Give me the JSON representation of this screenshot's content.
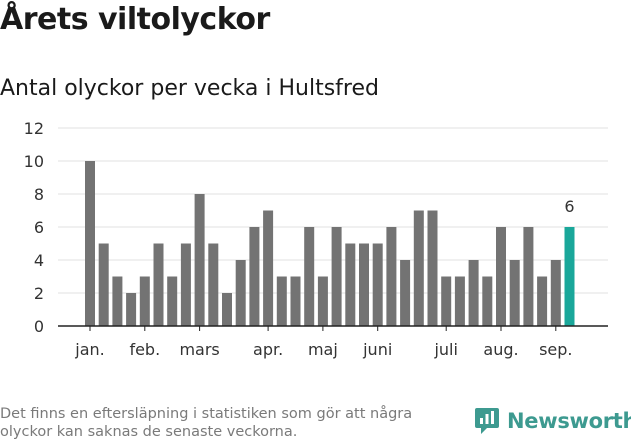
{
  "header": {
    "title": "Årets viltolyckor",
    "subtitle": "Antal olyckor per vecka i Hultsfred"
  },
  "footer": {
    "note": "Det finns en eftersläpning i statistiken som gör att några olyckor kan saknas de senaste veckorna.",
    "brand": "Newsworthy"
  },
  "colors": {
    "bar": "#737373",
    "highlight": "#1aa79a",
    "brand": "#3d9a90"
  },
  "chart_data": {
    "type": "bar",
    "title": "",
    "xlabel": "",
    "ylabel": "",
    "ylim": [
      0,
      12
    ],
    "yticks": [
      0,
      2,
      4,
      6,
      8,
      10,
      12
    ],
    "grid": true,
    "values": [
      10,
      5,
      3,
      2,
      3,
      5,
      3,
      5,
      8,
      5,
      2,
      4,
      6,
      7,
      3,
      3,
      6,
      3,
      6,
      5,
      5,
      5,
      6,
      4,
      7,
      7,
      3,
      3,
      4,
      3,
      6,
      4,
      6,
      3,
      4,
      6
    ],
    "month_labels": [
      {
        "label": "jan.",
        "week": 1
      },
      {
        "label": "feb.",
        "week": 5
      },
      {
        "label": "mars",
        "week": 9
      },
      {
        "label": "apr.",
        "week": 14
      },
      {
        "label": "maj",
        "week": 18
      },
      {
        "label": "juni",
        "week": 22
      },
      {
        "label": "juli",
        "week": 27
      },
      {
        "label": "aug.",
        "week": 31
      },
      {
        "label": "sep.",
        "week": 35
      }
    ],
    "highlight_index": 35,
    "highlight_label": "6"
  }
}
